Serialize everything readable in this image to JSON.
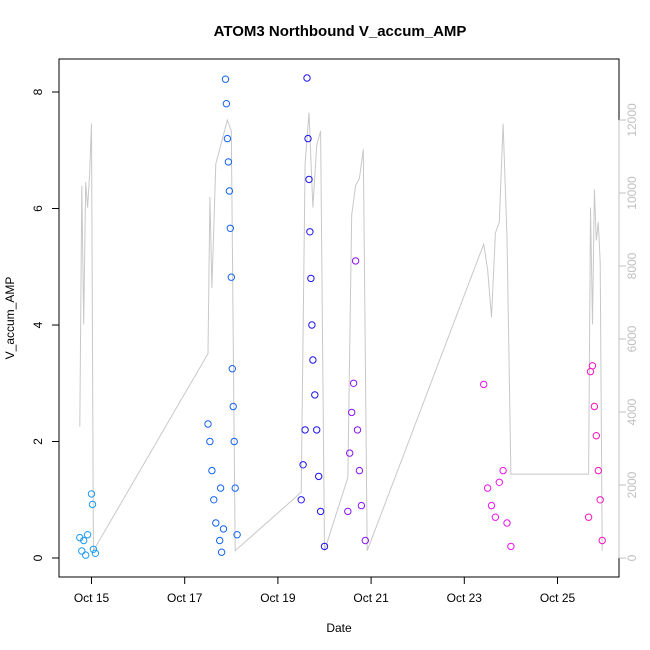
{
  "chart_data": {
    "type": "scatter",
    "title": "ATOM3 Northbound V_accum_AMP",
    "xlabel": "Date",
    "ylabel": "V_accum_AMP",
    "x_ticks": [
      "Oct 15",
      "Oct 17",
      "Oct 19",
      "Oct 21",
      "Oct 23",
      "Oct 25"
    ],
    "y_ticks": [
      "0",
      "2",
      "4",
      "6",
      "8"
    ],
    "y2_ticks": [
      "0",
      "2000",
      "4000",
      "6000",
      "8000",
      "10000",
      "12000"
    ],
    "ylim": [
      0,
      8.3
    ],
    "y2lim": [
      0,
      12100
    ],
    "grid": false,
    "legend": "none",
    "colors": {
      "line": "#c8c8c8",
      "cluster1": "#1e9bf5",
      "cluster2": "#1464f0",
      "cluster3": "#1e14f0",
      "cluster4": "#8c14f5",
      "cluster5": "#eb14eb",
      "cluster6": "#fa14be",
      "axis": "#000000",
      "right_axis": "#c0c0c0"
    },
    "series": [
      {
        "marker": "open-circle",
        "points": [
          {
            "date": "Oct 14 18:00",
            "y": 0.35
          },
          {
            "date": "Oct 14 19:00",
            "y": 0.12
          },
          {
            "date": "Oct 14 20:00",
            "y": 0.3
          },
          {
            "date": "Oct 14 21:00",
            "y": 0.05
          },
          {
            "date": "Oct 14 22:00",
            "y": 0.4
          },
          {
            "date": "Oct 15 00:00",
            "y": 1.1
          },
          {
            "date": "Oct 15 00:30",
            "y": 0.92
          },
          {
            "date": "Oct 15 01:00",
            "y": 0.15
          },
          {
            "date": "Oct 15 02:00",
            "y": 0.08
          },
          {
            "date": "Oct 17 12:00",
            "y": 2.3
          },
          {
            "date": "Oct 17 13:00",
            "y": 2.0
          },
          {
            "date": "Oct 17 14:00",
            "y": 1.5
          },
          {
            "date": "Oct 17 15:00",
            "y": 1.0
          },
          {
            "date": "Oct 17 16:00",
            "y": 0.6
          },
          {
            "date": "Oct 17 18:00",
            "y": 0.3
          },
          {
            "date": "Oct 17 18:30",
            "y": 1.2
          },
          {
            "date": "Oct 17 19:00",
            "y": 0.1
          },
          {
            "date": "Oct 17 20:00",
            "y": 0.5
          },
          {
            "date": "Oct 17 21:00",
            "y": 8.22
          },
          {
            "date": "Oct 17 21:30",
            "y": 7.8
          },
          {
            "date": "Oct 17 22:00",
            "y": 7.2
          },
          {
            "date": "Oct 17 22:30",
            "y": 6.8
          },
          {
            "date": "Oct 17 23:00",
            "y": 6.3
          },
          {
            "date": "Oct 17 23:30",
            "y": 5.66
          },
          {
            "date": "Oct 18 00:00",
            "y": 4.82
          },
          {
            "date": "Oct 18 00:30",
            "y": 3.25
          },
          {
            "date": "Oct 18 01:00",
            "y": 2.6
          },
          {
            "date": "Oct 18 01:30",
            "y": 2.0
          },
          {
            "date": "Oct 18 02:00",
            "y": 1.2
          },
          {
            "date": "Oct 18 03:00",
            "y": 0.4
          },
          {
            "date": "Oct 19 12:00",
            "y": 1.0
          },
          {
            "date": "Oct 19 13:00",
            "y": 1.6
          },
          {
            "date": "Oct 19 14:00",
            "y": 2.2
          },
          {
            "date": "Oct 19 15:00",
            "y": 8.24
          },
          {
            "date": "Oct 19 15:30",
            "y": 7.2
          },
          {
            "date": "Oct 19 16:00",
            "y": 6.5
          },
          {
            "date": "Oct 19 16:30",
            "y": 5.6
          },
          {
            "date": "Oct 19 17:00",
            "y": 4.8
          },
          {
            "date": "Oct 19 17:30",
            "y": 4.0
          },
          {
            "date": "Oct 19 18:00",
            "y": 3.4
          },
          {
            "date": "Oct 19 19:00",
            "y": 2.8
          },
          {
            "date": "Oct 19 20:00",
            "y": 2.2
          },
          {
            "date": "Oct 19 21:00",
            "y": 1.4
          },
          {
            "date": "Oct 19 22:00",
            "y": 0.8
          },
          {
            "date": "Oct 20 00:00",
            "y": 0.2
          },
          {
            "date": "Oct 20 12:00",
            "y": 0.8
          },
          {
            "date": "Oct 20 13:00",
            "y": 1.8
          },
          {
            "date": "Oct 20 14:00",
            "y": 2.5
          },
          {
            "date": "Oct 20 15:00",
            "y": 3.0
          },
          {
            "date": "Oct 20 16:00",
            "y": 5.1
          },
          {
            "date": "Oct 20 17:00",
            "y": 2.2
          },
          {
            "date": "Oct 20 18:00",
            "y": 1.5
          },
          {
            "date": "Oct 20 19:00",
            "y": 0.9
          },
          {
            "date": "Oct 20 21:00",
            "y": 0.3
          },
          {
            "date": "Oct 23 10:00",
            "y": 2.98
          },
          {
            "date": "Oct 23 12:00",
            "y": 1.2
          },
          {
            "date": "Oct 23 14:00",
            "y": 0.9
          },
          {
            "date": "Oct 23 16:00",
            "y": 0.7
          },
          {
            "date": "Oct 23 18:00",
            "y": 1.3
          },
          {
            "date": "Oct 23 20:00",
            "y": 1.5
          },
          {
            "date": "Oct 23 22:00",
            "y": 0.6
          },
          {
            "date": "Oct 24 00:00",
            "y": 0.2
          },
          {
            "date": "Oct 25 16:00",
            "y": 0.7
          },
          {
            "date": "Oct 25 17:00",
            "y": 3.2
          },
          {
            "date": "Oct 25 18:00",
            "y": 3.3
          },
          {
            "date": "Oct 25 19:00",
            "y": 2.6
          },
          {
            "date": "Oct 25 20:00",
            "y": 2.1
          },
          {
            "date": "Oct 25 21:00",
            "y": 1.5
          },
          {
            "date": "Oct 25 22:00",
            "y": 1.0
          },
          {
            "date": "Oct 25 23:00",
            "y": 0.3
          }
        ]
      },
      {
        "axis": "right",
        "line": true,
        "points": [
          {
            "date": "Oct 14 18:00",
            "y2": 3600
          },
          {
            "date": "Oct 14 19:00",
            "y2": 10200
          },
          {
            "date": "Oct 14 20:00",
            "y2": 6400
          },
          {
            "date": "Oct 14 21:00",
            "y2": 10300
          },
          {
            "date": "Oct 14 22:00",
            "y2": 9600
          },
          {
            "date": "Oct 14 23:00",
            "y2": 10500
          },
          {
            "date": "Oct 15 00:00",
            "y2": 11900
          },
          {
            "date": "Oct 15 01:00",
            "y2": 200
          },
          {
            "date": "Oct 17 12:00",
            "y2": 5600
          },
          {
            "date": "Oct 17 13:00",
            "y2": 9900
          },
          {
            "date": "Oct 17 14:00",
            "y2": 7400
          },
          {
            "date": "Oct 17 16:00",
            "y2": 10800
          },
          {
            "date": "Oct 17 18:00",
            "y2": 11200
          },
          {
            "date": "Oct 17 20:00",
            "y2": 11600
          },
          {
            "date": "Oct 17 22:00",
            "y2": 12000
          },
          {
            "date": "Oct 18 00:00",
            "y2": 11700
          },
          {
            "date": "Oct 18 02:00",
            "y2": 200
          },
          {
            "date": "Oct 19 12:00",
            "y2": 1800
          },
          {
            "date": "Oct 19 14:00",
            "y2": 10800
          },
          {
            "date": "Oct 19 16:00",
            "y2": 12200
          },
          {
            "date": "Oct 19 18:00",
            "y2": 9600
          },
          {
            "date": "Oct 19 20:00",
            "y2": 11300
          },
          {
            "date": "Oct 19 22:00",
            "y2": 11700
          },
          {
            "date": "Oct 20 00:00",
            "y2": 200
          },
          {
            "date": "Oct 20 12:00",
            "y2": 2200
          },
          {
            "date": "Oct 20 14:00",
            "y2": 9400
          },
          {
            "date": "Oct 20 16:00",
            "y2": 10200
          },
          {
            "date": "Oct 20 18:00",
            "y2": 10400
          },
          {
            "date": "Oct 20 20:00",
            "y2": 11200
          },
          {
            "date": "Oct 20 22:00",
            "y2": 200
          },
          {
            "date": "Oct 23 10:00",
            "y2": 8600
          },
          {
            "date": "Oct 23 12:00",
            "y2": 7900
          },
          {
            "date": "Oct 23 14:00",
            "y2": 6600
          },
          {
            "date": "Oct 23 16:00",
            "y2": 8900
          },
          {
            "date": "Oct 23 18:00",
            "y2": 9200
          },
          {
            "date": "Oct 23 20:00",
            "y2": 11900
          },
          {
            "date": "Oct 23 22:00",
            "y2": 8800
          },
          {
            "date": "Oct 24 00:00",
            "y2": 2300
          },
          {
            "date": "Oct 25 16:00",
            "y2": 2300
          },
          {
            "date": "Oct 25 17:00",
            "y2": 9600
          },
          {
            "date": "Oct 25 18:00",
            "y2": 6400
          },
          {
            "date": "Oct 25 19:00",
            "y2": 10100
          },
          {
            "date": "Oct 25 20:00",
            "y2": 8700
          },
          {
            "date": "Oct 25 21:00",
            "y2": 9200
          },
          {
            "date": "Oct 25 22:00",
            "y2": 8100
          },
          {
            "date": "Oct 25 23:00",
            "y2": 200
          }
        ]
      }
    ]
  }
}
